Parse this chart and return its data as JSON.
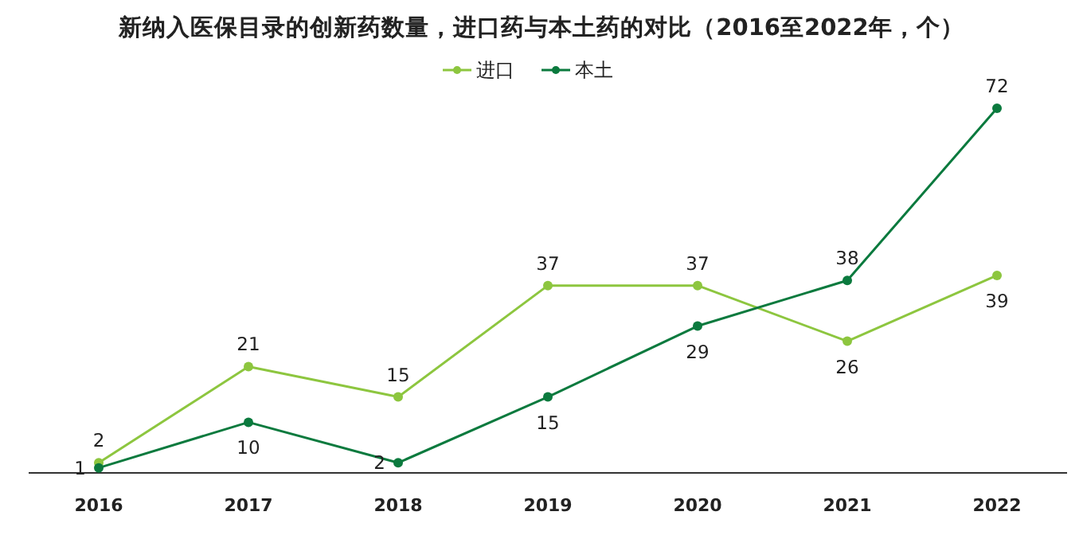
{
  "chart_data": {
    "type": "line",
    "title": "新纳入医保目录的创新药数量，进口药与本土药的对比（2016至2022年，个）",
    "categories": [
      "2016",
      "2017",
      "2018",
      "2019",
      "2020",
      "2021",
      "2022"
    ],
    "series": [
      {
        "name": "进口",
        "color": "#8dc63f",
        "values": [
          2,
          21,
          15,
          37,
          37,
          26,
          39
        ]
      },
      {
        "name": "本土",
        "color": "#0b7a3e",
        "values": [
          1,
          10,
          2,
          15,
          29,
          38,
          72
        ]
      }
    ],
    "data_labels": true,
    "legend": "top",
    "marker": "circle",
    "grid": false
  }
}
